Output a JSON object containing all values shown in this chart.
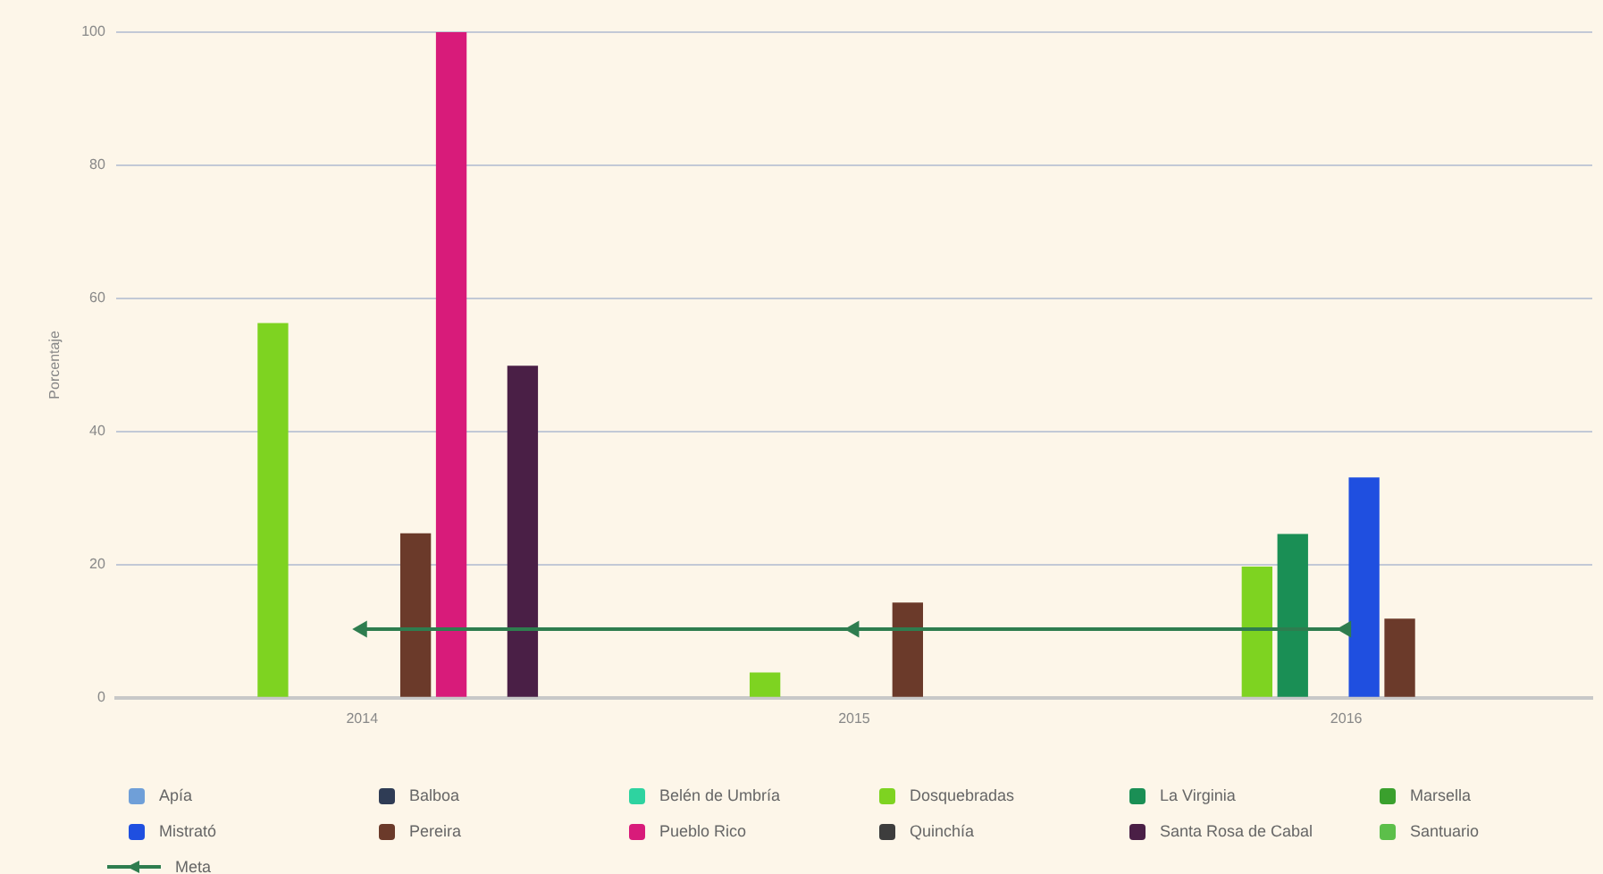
{
  "chart_data": {
    "type": "bar",
    "ylabel": "Porcentaje",
    "categories": [
      "2014",
      "2015",
      "2016"
    ],
    "ylim": [
      0,
      100
    ],
    "yticks": [
      0,
      20,
      40,
      60,
      80,
      100
    ],
    "grid": "y",
    "legend": "bottom",
    "marker": "triangle",
    "series": [
      {
        "name": "Apía",
        "color": "#6f9fd8",
        "values": [
          null,
          null,
          null
        ]
      },
      {
        "name": "Balboa",
        "color": "#2f3c55",
        "values": [
          null,
          null,
          null
        ]
      },
      {
        "name": "Belén de Umbría",
        "color": "#2ed3a0",
        "values": [
          null,
          null,
          null
        ]
      },
      {
        "name": "Dosquebradas",
        "color": "#7ed321",
        "values": [
          56.3,
          3.8,
          19.7
        ]
      },
      {
        "name": "La Virginia",
        "color": "#1a8f55",
        "values": [
          null,
          null,
          24.6
        ]
      },
      {
        "name": "Marsella",
        "color": "#3aa02d",
        "values": [
          null,
          null,
          null
        ]
      },
      {
        "name": "Mistrató",
        "color": "#1f4fe0",
        "values": [
          null,
          null,
          33.1
        ]
      },
      {
        "name": "Pereira",
        "color": "#6b3a2a",
        "values": [
          24.7,
          14.3,
          11.9
        ]
      },
      {
        "name": "Pueblo Rico",
        "color": "#d81b7a",
        "values": [
          100,
          null,
          null
        ]
      },
      {
        "name": "Quinchía",
        "color": "#3d3d3d",
        "values": [
          null,
          null,
          null
        ]
      },
      {
        "name": "Santa Rosa de Cabal",
        "color": "#4a1f46",
        "values": [
          49.9,
          null,
          null
        ]
      },
      {
        "name": "Santuario",
        "color": "#5cbf4a",
        "values": [
          null,
          null,
          null
        ]
      },
      {
        "name": "Meta",
        "type": "line",
        "color": "#2e7d4f",
        "values": [
          10.3,
          10.3,
          10.3
        ]
      }
    ]
  }
}
